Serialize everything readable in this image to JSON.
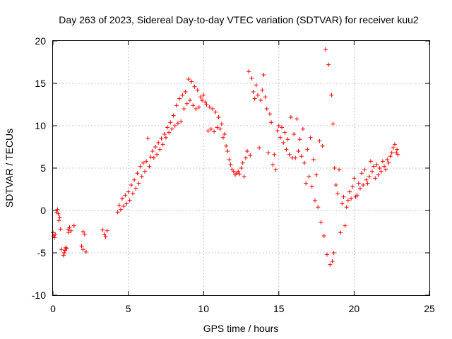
{
  "chart_data": {
    "type": "scatter",
    "title": "Day 263 of 2023, Sidereal Day-to-day VTEC variation (SDTVAR) for receiver kuu2",
    "xlabel": "GPS time / hours",
    "ylabel": "SDTVAR / TECUs",
    "xlim": [
      0,
      25
    ],
    "ylim": [
      -10,
      20
    ],
    "xticks": [
      0,
      5,
      10,
      15,
      20,
      25
    ],
    "yticks": [
      -10,
      -5,
      0,
      5,
      10,
      15,
      20
    ],
    "xtick_labels": [
      "0",
      "5",
      "10",
      "15",
      "20",
      "25"
    ],
    "ytick_labels": [
      "-10",
      "-5",
      "0",
      "5",
      "10",
      "15",
      "20"
    ],
    "grid": true,
    "marker": "+",
    "color": "#ff0000",
    "series": [
      {
        "name": "kuu2",
        "points": [
          [
            0.0,
            -2.6
          ],
          [
            0.05,
            -3.0
          ],
          [
            0.1,
            -3.2
          ],
          [
            0.15,
            -2.8
          ],
          [
            0.25,
            -0.2
          ],
          [
            0.3,
            0.1
          ],
          [
            0.35,
            -0.4
          ],
          [
            0.4,
            -1.2
          ],
          [
            0.45,
            -0.8
          ],
          [
            0.5,
            -2.2
          ],
          [
            0.55,
            -4.6
          ],
          [
            0.7,
            -5.3
          ],
          [
            0.75,
            -5.0
          ],
          [
            0.8,
            -4.7
          ],
          [
            0.85,
            -4.4
          ],
          [
            0.9,
            -4.5
          ],
          [
            1.0,
            -2.2
          ],
          [
            1.05,
            -2.6
          ],
          [
            1.1,
            -2.0
          ],
          [
            1.2,
            -2.4
          ],
          [
            1.4,
            -1.8
          ],
          [
            1.9,
            -4.2
          ],
          [
            2.0,
            -4.6
          ],
          [
            2.0,
            -2.5
          ],
          [
            2.1,
            -2.8
          ],
          [
            2.2,
            -4.9
          ],
          [
            3.3,
            -2.3
          ],
          [
            3.4,
            -2.8
          ],
          [
            3.5,
            -3.1
          ],
          [
            3.6,
            -2.4
          ],
          [
            4.3,
            -0.2
          ],
          [
            4.4,
            0.6
          ],
          [
            4.5,
            0.1
          ],
          [
            4.6,
            1.4
          ],
          [
            4.7,
            0.5
          ],
          [
            4.8,
            1.8
          ],
          [
            4.9,
            0.8
          ],
          [
            5.0,
            2.2
          ],
          [
            5.1,
            1.2
          ],
          [
            5.2,
            3.0
          ],
          [
            5.3,
            2.0
          ],
          [
            5.4,
            3.6
          ],
          [
            5.5,
            2.6
          ],
          [
            5.6,
            4.4
          ],
          [
            5.7,
            3.2
          ],
          [
            5.8,
            5.2
          ],
          [
            5.9,
            4.0
          ],
          [
            6.0,
            5.6
          ],
          [
            6.1,
            4.6
          ],
          [
            6.2,
            5.8
          ],
          [
            6.3,
            8.5
          ],
          [
            6.4,
            5.2
          ],
          [
            6.5,
            6.3
          ],
          [
            6.6,
            7.0
          ],
          [
            6.7,
            6.2
          ],
          [
            6.8,
            7.5
          ],
          [
            6.9,
            6.6
          ],
          [
            7.0,
            8.0
          ],
          [
            7.1,
            7.2
          ],
          [
            7.2,
            8.5
          ],
          [
            7.3,
            7.8
          ],
          [
            7.4,
            9.0
          ],
          [
            7.5,
            8.6
          ],
          [
            7.6,
            9.8
          ],
          [
            7.7,
            9.2
          ],
          [
            7.8,
            10.4
          ],
          [
            7.9,
            9.6
          ],
          [
            8.0,
            11.2
          ],
          [
            8.1,
            10.0
          ],
          [
            8.2,
            12.4
          ],
          [
            8.3,
            10.3
          ],
          [
            8.4,
            13.2
          ],
          [
            8.5,
            10.5
          ],
          [
            8.6,
            13.6
          ],
          [
            8.7,
            12.0
          ],
          [
            8.8,
            14.0
          ],
          [
            8.9,
            12.6
          ],
          [
            9.0,
            15.5
          ],
          [
            9.1,
            13.0
          ],
          [
            9.2,
            15.2
          ],
          [
            9.3,
            12.4
          ],
          [
            9.4,
            14.6
          ],
          [
            9.5,
            12.0
          ],
          [
            9.6,
            14.2
          ],
          [
            9.7,
            12.2
          ],
          [
            9.8,
            13.4
          ],
          [
            9.9,
            13.0
          ],
          [
            10.0,
            13.6
          ],
          [
            10.1,
            12.8
          ],
          [
            10.2,
            12.5
          ],
          [
            10.3,
            9.4
          ],
          [
            10.4,
            12.2
          ],
          [
            10.5,
            9.6
          ],
          [
            10.6,
            12.0
          ],
          [
            10.7,
            9.3
          ],
          [
            10.8,
            11.6
          ],
          [
            10.9,
            9.8
          ],
          [
            11.0,
            11.0
          ],
          [
            11.1,
            9.6
          ],
          [
            11.2,
            10.2
          ],
          [
            11.3,
            8.6
          ],
          [
            11.4,
            9.0
          ],
          [
            11.5,
            7.6
          ],
          [
            11.6,
            7.0
          ],
          [
            11.7,
            6.0
          ],
          [
            11.8,
            5.4
          ],
          [
            11.9,
            4.8
          ],
          [
            12.0,
            4.6
          ],
          [
            12.1,
            4.2
          ],
          [
            12.2,
            4.4
          ],
          [
            12.3,
            4.6
          ],
          [
            12.4,
            4.3
          ],
          [
            12.5,
            5.0
          ],
          [
            12.6,
            5.6
          ],
          [
            12.7,
            4.0
          ],
          [
            12.8,
            6.2
          ],
          [
            12.9,
            7.0
          ],
          [
            13.0,
            16.4
          ],
          [
            13.1,
            6.5
          ],
          [
            13.2,
            15.6
          ],
          [
            13.3,
            14.0
          ],
          [
            13.4,
            13.2
          ],
          [
            13.5,
            14.8
          ],
          [
            13.6,
            13.6
          ],
          [
            13.7,
            7.4
          ],
          [
            13.8,
            13.0
          ],
          [
            13.9,
            14.2
          ],
          [
            14.0,
            16.0
          ],
          [
            14.1,
            13.4
          ],
          [
            14.2,
            12.0
          ],
          [
            14.3,
            6.8
          ],
          [
            14.4,
            11.4
          ],
          [
            14.5,
            10.4
          ],
          [
            14.6,
            5.4
          ],
          [
            14.7,
            6.6
          ],
          [
            14.8,
            4.8
          ],
          [
            14.9,
            9.4
          ],
          [
            15.0,
            10.0
          ],
          [
            15.1,
            8.6
          ],
          [
            15.2,
            9.8
          ],
          [
            15.3,
            8.0
          ],
          [
            15.4,
            9.2
          ],
          [
            15.5,
            7.2
          ],
          [
            15.6,
            8.4
          ],
          [
            15.7,
            6.6
          ],
          [
            15.8,
            11.0
          ],
          [
            15.9,
            6.2
          ],
          [
            16.0,
            9.0
          ],
          [
            16.1,
            6.2
          ],
          [
            16.2,
            10.8
          ],
          [
            16.3,
            7.0
          ],
          [
            16.4,
            8.4
          ],
          [
            16.5,
            6.4
          ],
          [
            16.6,
            9.6
          ],
          [
            16.7,
            5.6
          ],
          [
            16.8,
            3.2
          ],
          [
            16.9,
            7.2
          ],
          [
            17.0,
            4.0
          ],
          [
            17.1,
            8.6
          ],
          [
            17.2,
            2.8
          ],
          [
            17.3,
            6.0
          ],
          [
            17.4,
            1.2
          ],
          [
            17.5,
            4.2
          ],
          [
            17.6,
            0.4
          ],
          [
            17.7,
            8.2
          ],
          [
            17.8,
            -1.4
          ],
          [
            17.9,
            7.6
          ],
          [
            18.0,
            -3.0
          ],
          [
            18.1,
            19.0
          ],
          [
            18.2,
            -5.2
          ],
          [
            18.3,
            17.2
          ],
          [
            18.4,
            -6.4
          ],
          [
            18.5,
            13.6
          ],
          [
            18.55,
            -6.0
          ],
          [
            18.6,
            10.2
          ],
          [
            18.65,
            -5.0
          ],
          [
            18.7,
            5.0
          ],
          [
            18.8,
            3.0
          ],
          [
            18.9,
            2.0
          ],
          [
            19.0,
            4.8
          ],
          [
            19.1,
            -2.6
          ],
          [
            19.2,
            0.8
          ],
          [
            19.3,
            1.6
          ],
          [
            19.4,
            -1.8
          ],
          [
            19.5,
            0.4
          ],
          [
            19.6,
            1.2
          ],
          [
            19.7,
            2.2
          ],
          [
            19.8,
            1.4
          ],
          [
            19.9,
            2.8
          ],
          [
            20.0,
            3.8
          ],
          [
            20.1,
            1.6
          ],
          [
            20.2,
            1.8
          ],
          [
            20.3,
            3.2
          ],
          [
            20.4,
            2.6
          ],
          [
            20.5,
            4.4
          ],
          [
            20.6,
            3.0
          ],
          [
            20.7,
            4.8
          ],
          [
            20.8,
            3.6
          ],
          [
            20.9,
            3.2
          ],
          [
            21.0,
            4.0
          ],
          [
            21.1,
            5.8
          ],
          [
            21.2,
            4.6
          ],
          [
            21.3,
            5.2
          ],
          [
            21.4,
            3.8
          ],
          [
            21.5,
            5.4
          ],
          [
            21.6,
            4.2
          ],
          [
            21.7,
            5.0
          ],
          [
            21.8,
            4.6
          ],
          [
            21.9,
            5.8
          ],
          [
            22.0,
            5.2
          ],
          [
            22.1,
            4.8
          ],
          [
            22.2,
            6.0
          ],
          [
            22.3,
            5.6
          ],
          [
            22.4,
            6.4
          ],
          [
            22.5,
            6.8
          ],
          [
            22.6,
            7.4
          ],
          [
            22.7,
            7.8
          ],
          [
            22.8,
            6.8
          ],
          [
            22.85,
            7.2
          ],
          [
            22.9,
            6.6
          ]
        ]
      }
    ]
  }
}
